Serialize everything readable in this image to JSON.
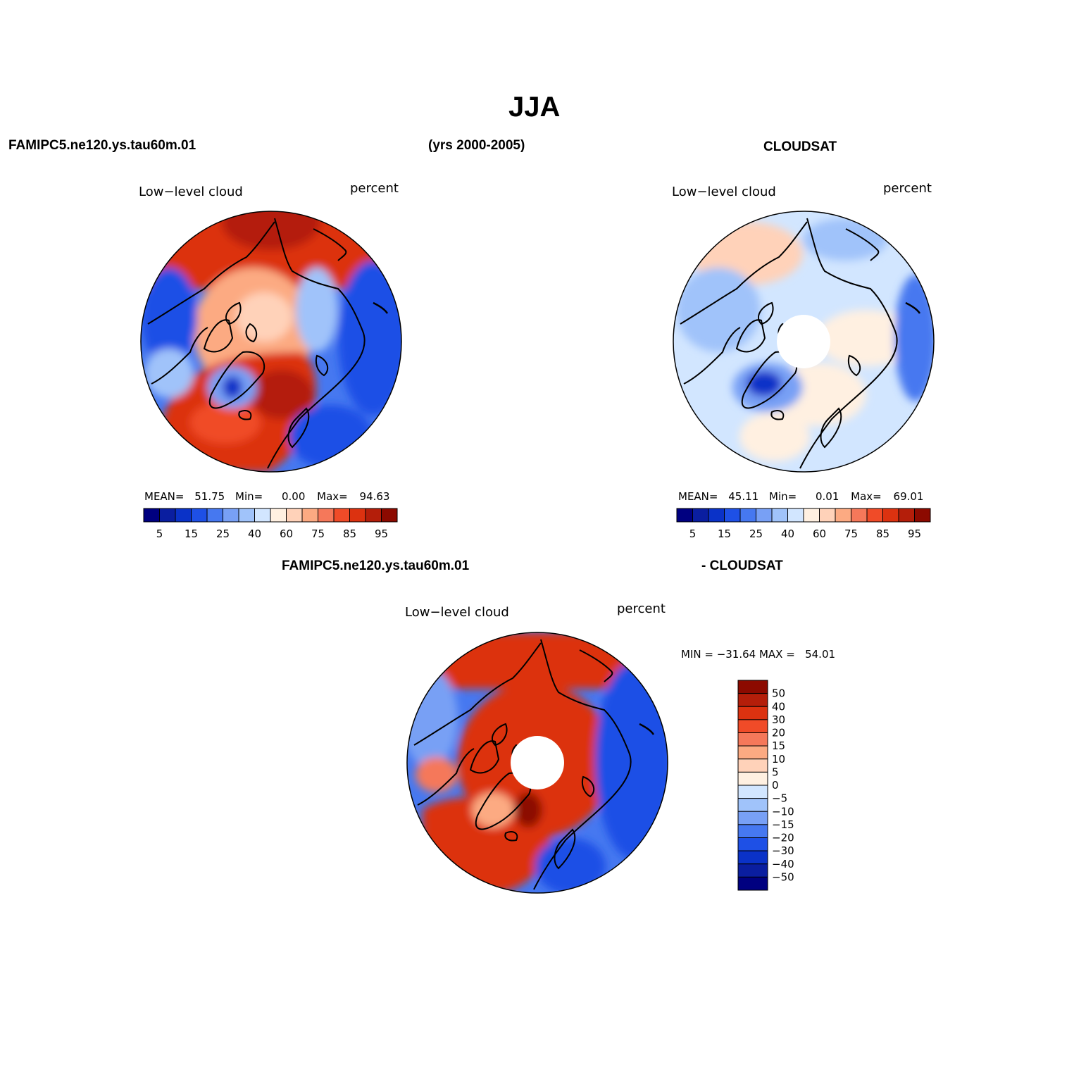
{
  "figure": {
    "season": "JJA",
    "model_name": "FAMIPC5.ne120.ys.tau60m.01",
    "years": "(yrs 2000-2005)",
    "obs_name": "CLOUDSAT"
  },
  "panels": [
    {
      "variable": "Low−level cloud",
      "units": "percent",
      "stats": {
        "mean_label": "MEAN=",
        "mean": "51.75",
        "min_label": "Min=",
        "min": "0.00",
        "max_label": "Max=",
        "max": "94.63"
      }
    },
    {
      "variable": "Low−level cloud",
      "units": "percent",
      "stats": {
        "mean_label": "MEAN=",
        "mean": "45.11",
        "min_label": "Min=",
        "min": "0.01",
        "max_label": "Max=",
        "max": "69.01"
      }
    }
  ],
  "diff_panel": {
    "title_model": "FAMIPC5.ne120.ys.tau60m.01",
    "title_obs": "- CLOUDSAT",
    "variable": "Low−level cloud",
    "units": "percent",
    "min_max": "MIN = −31.64 MAX =   54.01"
  },
  "colorbar_abs": {
    "colors": [
      "#000080",
      "#0a1ea0",
      "#0a32c8",
      "#1e50e6",
      "#4678f0",
      "#78a0f5",
      "#a0c3fa",
      "#d2e6ff",
      "#fff0e1",
      "#ffd2b9",
      "#fcaa82",
      "#f5785a",
      "#f04b28",
      "#dc3210",
      "#b41e0a",
      "#8c0a00"
    ],
    "tick_labels": [
      "5",
      "15",
      "25",
      "40",
      "60",
      "75",
      "85",
      "95"
    ]
  },
  "colorbar_diff": {
    "colors": [
      "#000080",
      "#0a1ea0",
      "#0a32c8",
      "#1e50e6",
      "#4678f0",
      "#78a0f5",
      "#a0c3fa",
      "#d2e6ff",
      "#fff0e1",
      "#ffd2b9",
      "#fcaa82",
      "#f5785a",
      "#f04b28",
      "#dc3210",
      "#b41e0a",
      "#8c0a00"
    ],
    "tick_labels": [
      "50",
      "40",
      "30",
      "20",
      "15",
      "10",
      "5",
      "0",
      "−5",
      "−10",
      "−15",
      "−20",
      "−30",
      "−40",
      "−50"
    ]
  }
}
